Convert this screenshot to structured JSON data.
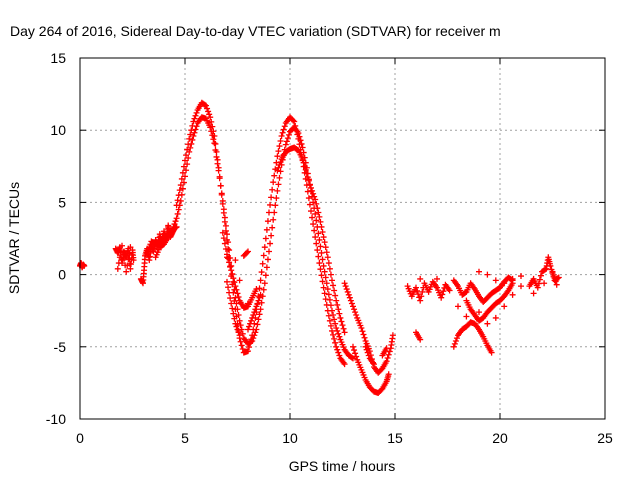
{
  "chart_data": {
    "type": "scatter",
    "title": "Day 264 of 2016, Sidereal Day-to-day VTEC variation (SDTVAR) for receiver m",
    "xlabel": "GPS time / hours",
    "ylabel": "SDTVAR / TECUs",
    "xlim": [
      0,
      25
    ],
    "ylim": [
      -10,
      15
    ],
    "xticks": [
      0,
      5,
      10,
      15,
      20,
      25
    ],
    "yticks": [
      -10,
      -5,
      0,
      5,
      10,
      15
    ],
    "grid": true,
    "marker": "plus",
    "color": "#ff0000",
    "series": [
      {
        "points": [
          [
            0.0,
            0.6
          ],
          [
            0.05,
            0.8
          ],
          [
            0.1,
            0.5
          ],
          [
            0.15,
            0.7
          ],
          [
            0.2,
            0.6
          ],
          [
            1.7,
            1.8
          ],
          [
            1.8,
            1.5
          ],
          [
            1.9,
            1.9
          ],
          [
            2.0,
            0.8
          ],
          [
            2.1,
            1.6
          ],
          [
            2.2,
            1.2
          ],
          [
            2.3,
            1.8
          ],
          [
            2.4,
            0.4
          ],
          [
            2.5,
            1.7
          ],
          [
            2.55,
            1.0
          ],
          [
            1.8,
            0.4
          ],
          [
            2.0,
            2.0
          ],
          [
            2.2,
            0.2
          ],
          [
            2.4,
            1.9
          ],
          [
            2.9,
            -0.3
          ],
          [
            3.0,
            -0.6
          ],
          [
            3.05,
            0.3
          ],
          [
            3.1,
            1.3
          ],
          [
            3.2,
            1.8
          ],
          [
            3.3,
            1.0
          ],
          [
            3.4,
            2.0
          ],
          [
            3.5,
            1.6
          ],
          [
            3.6,
            2.4
          ],
          [
            3.7,
            1.9
          ],
          [
            3.8,
            2.8
          ],
          [
            3.9,
            2.2
          ],
          [
            4.0,
            3.0
          ],
          [
            4.1,
            2.4
          ],
          [
            4.2,
            3.4
          ],
          [
            4.3,
            2.6
          ],
          [
            4.4,
            2.9
          ],
          [
            4.5,
            3.2
          ],
          [
            4.6,
            3.3
          ],
          [
            3.2,
            1.5
          ],
          [
            3.4,
            2.3
          ],
          [
            3.6,
            2.1
          ],
          [
            3.8,
            2.2
          ],
          [
            4.0,
            2.6
          ],
          [
            4.2,
            2.8
          ],
          [
            3.6,
            1.2
          ],
          [
            3.8,
            1.9
          ],
          [
            4.0,
            2.1
          ],
          [
            4.2,
            2.6
          ],
          [
            4.4,
            3.1
          ],
          [
            4.6,
            3.9
          ],
          [
            4.8,
            5.1
          ],
          [
            5.0,
            6.8
          ],
          [
            5.2,
            8.5
          ],
          [
            5.4,
            9.6
          ],
          [
            5.6,
            10.5
          ],
          [
            5.8,
            10.9
          ],
          [
            6.0,
            10.8
          ],
          [
            6.2,
            10.2
          ],
          [
            6.4,
            9.1
          ],
          [
            6.6,
            7.2
          ],
          [
            6.8,
            5.1
          ],
          [
            7.0,
            2.8
          ],
          [
            7.2,
            0.6
          ],
          [
            7.4,
            -1.6
          ],
          [
            7.6,
            -3.2
          ],
          [
            7.8,
            -4.4
          ],
          [
            8.0,
            -4.8
          ],
          [
            8.2,
            -4.6
          ],
          [
            8.4,
            -3.8
          ],
          [
            8.6,
            -2.4
          ],
          [
            8.8,
            -0.6
          ],
          [
            9.0,
            1.6
          ],
          [
            9.2,
            3.8
          ],
          [
            9.4,
            5.8
          ],
          [
            9.6,
            7.6
          ],
          [
            9.8,
            9.0
          ],
          [
            10.0,
            9.9
          ],
          [
            10.2,
            10.2
          ],
          [
            10.4,
            9.8
          ],
          [
            10.6,
            8.8
          ],
          [
            10.8,
            7.4
          ],
          [
            11.0,
            5.8
          ],
          [
            11.2,
            4.2
          ],
          [
            11.4,
            2.4
          ],
          [
            11.6,
            0.6
          ],
          [
            11.8,
            -1.0
          ],
          [
            12.0,
            -2.5
          ],
          [
            12.2,
            -3.7
          ],
          [
            12.4,
            -4.5
          ],
          [
            12.6,
            -5.2
          ],
          [
            12.8,
            -5.6
          ],
          [
            13.0,
            -5.8
          ],
          [
            3.8,
            2.4
          ],
          [
            4.2,
            3.3
          ],
          [
            4.6,
            4.8
          ],
          [
            4.8,
            6.2
          ],
          [
            5.0,
            7.9
          ],
          [
            5.2,
            9.4
          ],
          [
            5.4,
            10.6
          ],
          [
            5.6,
            11.4
          ],
          [
            5.8,
            11.9
          ],
          [
            6.0,
            11.7
          ],
          [
            6.2,
            10.9
          ],
          [
            6.4,
            9.6
          ],
          [
            6.6,
            7.4
          ],
          [
            6.8,
            4.9
          ],
          [
            7.0,
            2.4
          ],
          [
            7.2,
            -0.1
          ],
          [
            7.4,
            -2.4
          ],
          [
            7.6,
            -4.4
          ],
          [
            7.8,
            -5.4
          ],
          [
            8.0,
            -5.3
          ],
          [
            8.2,
            -4.2
          ],
          [
            8.4,
            -2.6
          ],
          [
            8.6,
            -0.4
          ],
          [
            8.8,
            1.9
          ],
          [
            9.0,
            4.3
          ],
          [
            9.2,
            6.4
          ],
          [
            9.4,
            8.2
          ],
          [
            9.6,
            9.6
          ],
          [
            9.8,
            10.5
          ],
          [
            10.0,
            10.9
          ],
          [
            10.2,
            10.6
          ],
          [
            10.4,
            9.4
          ],
          [
            10.6,
            7.9
          ],
          [
            10.8,
            6.2
          ],
          [
            11.0,
            4.4
          ],
          [
            11.2,
            2.6
          ],
          [
            11.4,
            0.8
          ],
          [
            11.6,
            -0.9
          ],
          [
            11.8,
            -2.5
          ],
          [
            12.0,
            -3.9
          ],
          [
            12.2,
            -5.0
          ],
          [
            12.4,
            -5.8
          ],
          [
            12.6,
            -6.2
          ],
          [
            6.8,
            2.9
          ],
          [
            7.0,
            1.4
          ],
          [
            7.2,
            0.3
          ],
          [
            7.4,
            -0.8
          ],
          [
            7.6,
            -1.8
          ],
          [
            7.8,
            -2.3
          ],
          [
            8.0,
            -2.2
          ],
          [
            8.2,
            -1.6
          ],
          [
            8.4,
            -1.0
          ],
          [
            7.0,
            -0.5
          ],
          [
            7.2,
            -2.0
          ],
          [
            7.4,
            -3.4
          ],
          [
            7.6,
            -4.2
          ],
          [
            8.0,
            -3.8
          ],
          [
            8.2,
            -3.0
          ],
          [
            8.4,
            -2.2
          ],
          [
            8.6,
            -1.4
          ],
          [
            9.4,
            7.2
          ],
          [
            9.6,
            8.0
          ],
          [
            9.8,
            8.5
          ],
          [
            10.0,
            8.7
          ],
          [
            10.2,
            8.8
          ],
          [
            10.4,
            8.6
          ],
          [
            10.6,
            8.0
          ],
          [
            10.8,
            7.0
          ],
          [
            11.0,
            6.0
          ],
          [
            11.2,
            5.2
          ],
          [
            11.4,
            4.0
          ],
          [
            11.6,
            2.6
          ],
          [
            11.8,
            1.2
          ],
          [
            12.0,
            -0.4
          ],
          [
            12.2,
            -1.8
          ],
          [
            12.4,
            -3.0
          ],
          [
            12.6,
            -4.0
          ],
          [
            7.0,
            1.2
          ],
          [
            7.4,
            1.0
          ],
          [
            7.8,
            1.3
          ],
          [
            8.0,
            1.6
          ],
          [
            7.6,
            -0.4
          ],
          [
            8.0,
            -2.0
          ],
          [
            12.6,
            -0.6
          ],
          [
            12.8,
            -1.4
          ],
          [
            13.0,
            -2.2
          ],
          [
            13.2,
            -3.0
          ],
          [
            13.4,
            -3.7
          ],
          [
            13.6,
            -4.6
          ],
          [
            13.8,
            -5.3
          ],
          [
            14.0,
            -6.4
          ],
          [
            14.2,
            -6.8
          ],
          [
            14.4,
            -6.5
          ],
          [
            14.6,
            -6.0
          ],
          [
            14.8,
            -5.1
          ],
          [
            14.9,
            -4.2
          ],
          [
            13.0,
            -5.0
          ],
          [
            13.2,
            -5.9
          ],
          [
            13.4,
            -6.6
          ],
          [
            13.6,
            -7.3
          ],
          [
            13.8,
            -7.8
          ],
          [
            14.0,
            -8.1
          ],
          [
            14.2,
            -8.2
          ],
          [
            14.4,
            -7.9
          ],
          [
            14.6,
            -7.4
          ],
          [
            14.7,
            -6.9
          ],
          [
            13.6,
            -5.0
          ],
          [
            13.8,
            -5.8
          ],
          [
            14.0,
            -6.2
          ],
          [
            14.4,
            -5.6
          ],
          [
            14.6,
            -5.1
          ],
          [
            15.6,
            -0.8
          ],
          [
            15.8,
            -1.5
          ],
          [
            16.0,
            -0.9
          ],
          [
            16.2,
            -1.8
          ],
          [
            16.4,
            -0.6
          ],
          [
            16.6,
            -1.2
          ],
          [
            16.8,
            -0.5
          ],
          [
            17.0,
            -0.9
          ],
          [
            17.2,
            -1.6
          ],
          [
            17.4,
            -0.7
          ],
          [
            17.6,
            -1.1
          ],
          [
            16.2,
            -0.3
          ],
          [
            17.0,
            -0.3
          ],
          [
            16.0,
            -4.0
          ],
          [
            16.2,
            -4.5
          ],
          [
            17.8,
            -0.4
          ],
          [
            18.0,
            -0.8
          ],
          [
            18.2,
            -1.4
          ],
          [
            18.4,
            -1.2
          ],
          [
            18.6,
            -0.6
          ],
          [
            18.8,
            -1.0
          ],
          [
            19.0,
            -1.5
          ],
          [
            19.2,
            -1.9
          ],
          [
            19.4,
            -1.6
          ],
          [
            19.6,
            -1.3
          ],
          [
            19.8,
            -1.1
          ],
          [
            20.0,
            -0.9
          ],
          [
            20.2,
            -0.5
          ],
          [
            20.4,
            -0.2
          ],
          [
            20.6,
            -0.4
          ],
          [
            17.8,
            -5.0
          ],
          [
            18.0,
            -4.2
          ],
          [
            18.2,
            -3.8
          ],
          [
            18.4,
            -3.6
          ],
          [
            18.6,
            -3.3
          ],
          [
            18.8,
            -3.4
          ],
          [
            19.0,
            -3.8
          ],
          [
            19.2,
            -4.3
          ],
          [
            19.4,
            -4.9
          ],
          [
            19.6,
            -5.4
          ],
          [
            18.4,
            -1.8
          ],
          [
            18.6,
            -2.4
          ],
          [
            18.8,
            -2.8
          ],
          [
            19.0,
            -3.2
          ],
          [
            19.2,
            -3.0
          ],
          [
            19.4,
            -2.6
          ],
          [
            19.6,
            -2.3
          ],
          [
            19.8,
            -2.0
          ],
          [
            20.0,
            -1.8
          ],
          [
            20.2,
            -1.5
          ],
          [
            20.4,
            -1.1
          ],
          [
            20.6,
            -0.6
          ],
          [
            18.0,
            -2.2
          ],
          [
            18.4,
            -2.9
          ],
          [
            19.0,
            -2.6
          ],
          [
            19.4,
            -3.4
          ],
          [
            19.8,
            -3.0
          ],
          [
            20.2,
            -2.2
          ],
          [
            20.6,
            -1.4
          ],
          [
            21.0,
            -0.8
          ],
          [
            19.0,
            0.2
          ],
          [
            19.4,
            0.0
          ],
          [
            19.8,
            -0.4
          ],
          [
            20.2,
            -0.6
          ],
          [
            20.6,
            -0.3
          ],
          [
            21.0,
            -0.1
          ],
          [
            21.4,
            -0.8
          ],
          [
            21.6,
            -0.3
          ],
          [
            21.8,
            -0.9
          ],
          [
            22.0,
            0.2
          ],
          [
            22.2,
            0.4
          ],
          [
            22.3,
            1.2
          ],
          [
            22.4,
            0.6
          ],
          [
            22.6,
            -0.4
          ],
          [
            22.8,
            -0.2
          ],
          [
            22.1,
            -0.6
          ],
          [
            22.5,
            0.2
          ],
          [
            22.7,
            -0.7
          ],
          [
            21.6,
            -1.3
          ]
        ]
      }
    ]
  }
}
